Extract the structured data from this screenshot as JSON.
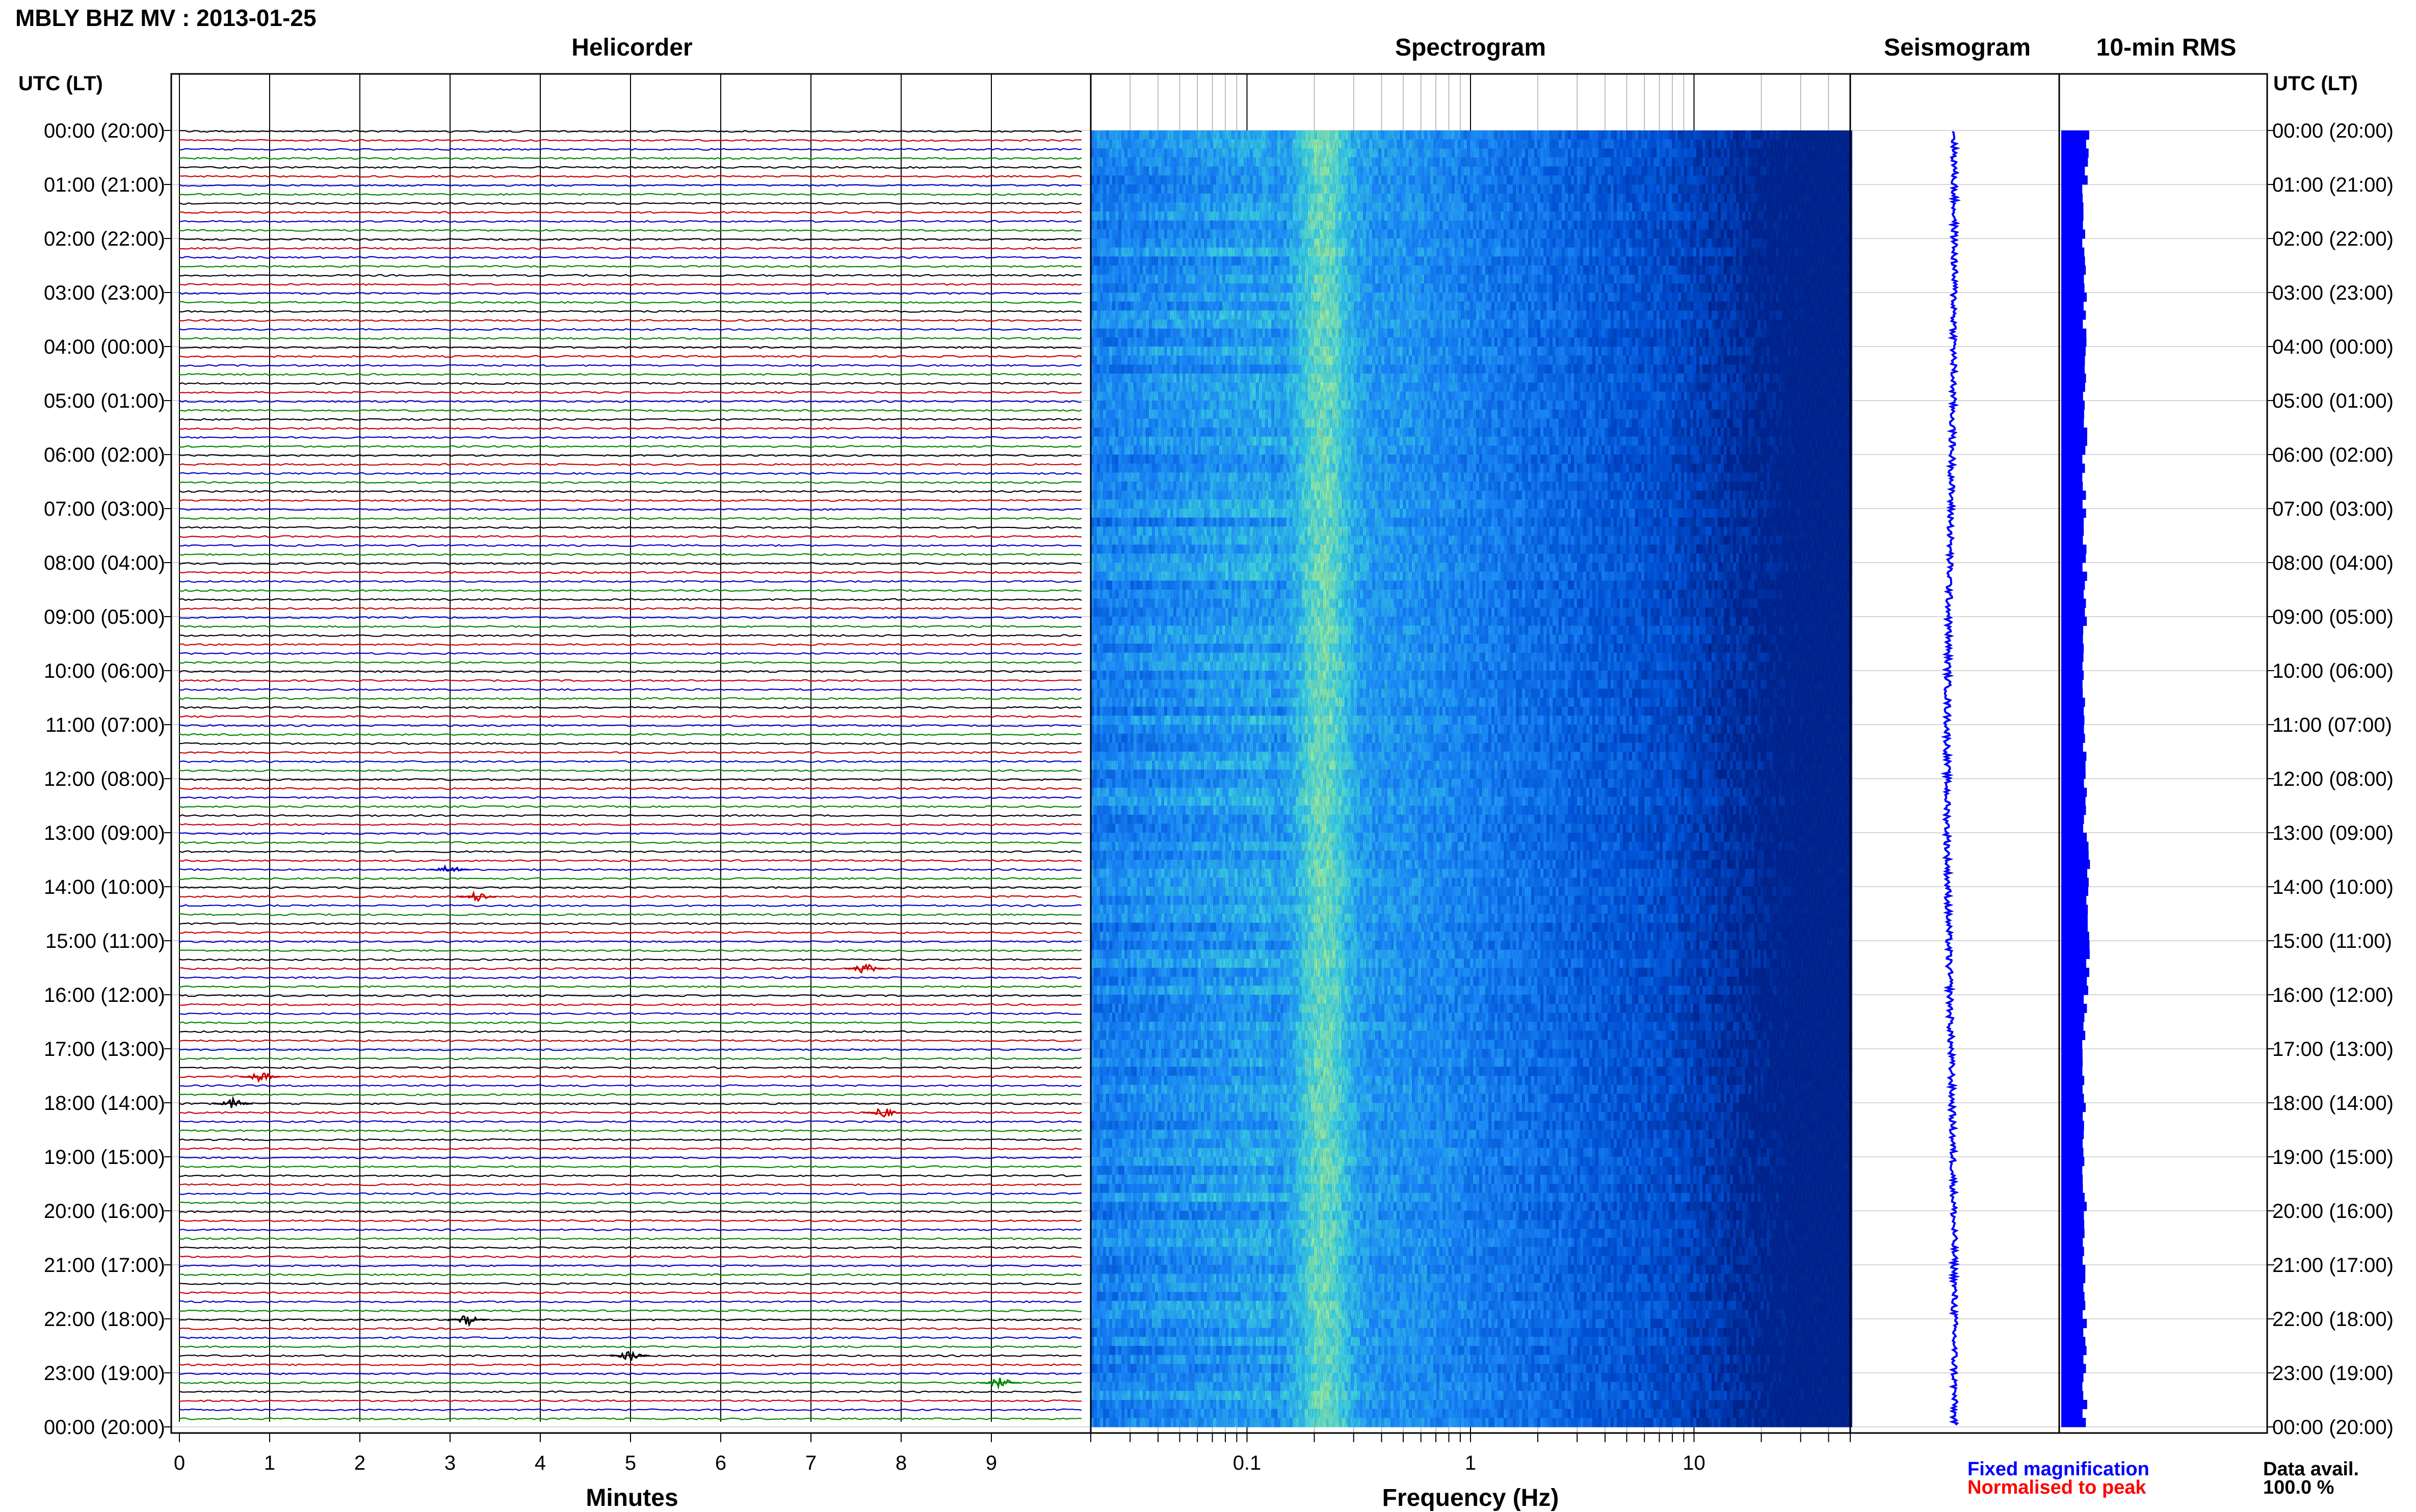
{
  "title": "MBLY BHZ MV : 2013-01-25",
  "panels": {
    "helicorder": "Helicorder",
    "spectrogram": "Spectrogram",
    "seismogram": "Seismogram",
    "rms": "10-min RMS"
  },
  "time_axis_header": "UTC (LT)",
  "legend": {
    "fixed": "Fixed magnification",
    "normalised": "Normalised to peak",
    "data_avail_label": "Data avail.",
    "data_avail_value": "100.0 %"
  },
  "colors": {
    "trace_cycle": [
      "#000000",
      "#cc0000",
      "#0000cc",
      "#008800"
    ],
    "fixed": "#0000ff",
    "normalised": "#ff0000",
    "rms": "#0000ff",
    "seismogram": "#0000ff"
  },
  "chart_data": [
    {
      "type": "line",
      "panel": "Helicorder",
      "xlabel": "Minutes",
      "x_ticks": [
        "0",
        "1",
        "2",
        "3",
        "4",
        "5",
        "6",
        "7",
        "8",
        "9"
      ],
      "xlim": [
        0,
        10
      ],
      "rows_per_hour": 6,
      "time_labels": [
        "00:00 (20:00)",
        "01:00 (21:00)",
        "02:00 (22:00)",
        "03:00 (23:00)",
        "04:00 (00:00)",
        "05:00 (01:00)",
        "06:00 (02:00)",
        "07:00 (03:00)",
        "08:00 (04:00)",
        "09:00 (05:00)",
        "10:00 (06:00)",
        "11:00 (07:00)",
        "12:00 (08:00)",
        "13:00 (09:00)",
        "14:00 (10:00)",
        "15:00 (11:00)",
        "16:00 (12:00)",
        "17:00 (13:00)",
        "18:00 (14:00)",
        "19:00 (15:00)",
        "20:00 (16:00)",
        "21:00 (17:00)",
        "22:00 (18:00)",
        "23:00 (19:00)",
        "00:00 (20:00)"
      ],
      "events": [
        {
          "hour": 13.7,
          "minute": 3.0
        },
        {
          "hour": 14.3,
          "minute": 3.3
        },
        {
          "hour": 15.5,
          "minute": 7.6
        },
        {
          "hour": 17.5,
          "minute": 0.9
        },
        {
          "hour": 18.0,
          "minute": 0.6
        },
        {
          "hour": 18.3,
          "minute": 7.8
        },
        {
          "hour": 22.0,
          "minute": 3.2
        },
        {
          "hour": 22.8,
          "minute": 5.0
        },
        {
          "hour": 23.3,
          "minute": 9.1
        }
      ]
    },
    {
      "type": "heatmap",
      "panel": "Spectrogram",
      "xlabel": "Frequency (Hz)",
      "x_scale": "log",
      "xlim": [
        0.02,
        50
      ],
      "x_ticks": [
        "0.1",
        "1",
        "10"
      ],
      "ylim_hours": [
        0,
        24
      ],
      "colormap": [
        "#001e8c",
        "#0050dc",
        "#1e8cff",
        "#3cd2e6",
        "#a0f0a0"
      ],
      "microseism_peak_hz": 0.22
    },
    {
      "type": "line",
      "panel": "Seismogram",
      "description_values": "one trace per 10-min window, low amplitude",
      "ylim_hours": [
        0,
        24
      ]
    },
    {
      "type": "bar",
      "panel": "10-min RMS",
      "ylim_hours": [
        0,
        24
      ],
      "relative_levels": "near-constant, slight increase 13:00–16:00"
    }
  ]
}
